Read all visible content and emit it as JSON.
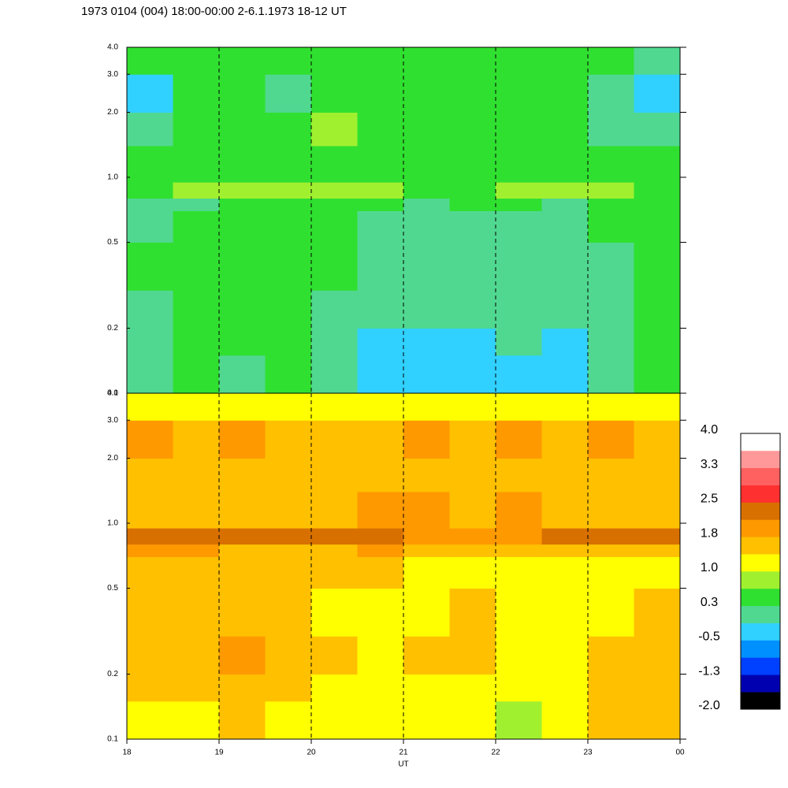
{
  "chart_data": {
    "type": "heatmap",
    "title": "1973 0104 (004) 18:00-00:00 2-6.1.1973  18-12 UT",
    "xlabel": "UT",
    "xlim": [
      18,
      24
    ],
    "xticks": [
      18,
      19,
      20,
      21,
      22,
      23,
      {
        "value": 24,
        "label": "00"
      }
    ],
    "ylim": [
      0.1,
      4
    ],
    "yticks": [
      0.1,
      0.2,
      0.5,
      {
        "value": 1,
        "label": "1.0"
      },
      {
        "value": 2,
        "label": "2.0"
      },
      {
        "value": 3,
        "label": "3.0"
      },
      {
        "value": 4,
        "label": "4.0"
      }
    ],
    "log_y": true,
    "grid": true,
    "time_bins": [
      18,
      18.5,
      19,
      19.5,
      20,
      20.5,
      21,
      21.5,
      22,
      22.5,
      23,
      23.5,
      24
    ],
    "freq_bins": [
      0.1,
      0.15,
      0.2,
      0.3,
      0.5,
      0.7,
      0.8,
      0.95,
      1.4,
      2,
      3,
      4
    ],
    "panels": [
      {
        "values": [
          [
            0.1,
            0.3,
            0.1,
            0.3,
            0.0,
            -0.3,
            -0.3,
            -0.3,
            -0.2,
            -0.3,
            0.0,
            0.3
          ],
          [
            0.1,
            0.3,
            0.3,
            0.3,
            0.1,
            -0.2,
            -0.2,
            -0.3,
            -0.1,
            -0.2,
            0.1,
            0.3
          ],
          [
            0.1,
            0.3,
            0.4,
            0.3,
            0.1,
            0.0,
            -0.1,
            -0.1,
            0.0,
            -0.1,
            0.1,
            0.3
          ],
          [
            0.3,
            0.3,
            0.4,
            0.3,
            0.3,
            0.1,
            0.0,
            0.1,
            0.1,
            0.0,
            0.1,
            0.3
          ],
          [
            0.0,
            0.3,
            0.3,
            0.3,
            0.3,
            0.1,
            0.1,
            0.1,
            0.1,
            0.0,
            0.3,
            0.3
          ],
          [
            0.0,
            0.1,
            0.3,
            0.3,
            0.3,
            0.3,
            0.1,
            0.3,
            0.3,
            0.1,
            0.3,
            0.3
          ],
          [
            0.5,
            0.7,
            0.7,
            0.7,
            0.7,
            0.7,
            0.5,
            0.5,
            0.7,
            0.7,
            0.7,
            0.5
          ],
          [
            0.3,
            0.3,
            0.4,
            0.5,
            0.4,
            0.3,
            0.3,
            0.3,
            0.4,
            0.4,
            0.3,
            0.3
          ],
          [
            0.0,
            0.3,
            0.5,
            0.4,
            0.7,
            0.4,
            0.3,
            0.4,
            0.3,
            0.5,
            0.1,
            0.0
          ],
          [
            -0.2,
            0.3,
            0.3,
            0.0,
            0.4,
            0.3,
            0.3,
            0.3,
            0.3,
            0.3,
            0.0,
            -0.2
          ],
          [
            0.3,
            0.3,
            0.3,
            0.4,
            0.5,
            0.4,
            0.4,
            0.3,
            0.3,
            0.4,
            0.3,
            0.1
          ]
        ]
      },
      {
        "values": [
          [
            1.2,
            1.2,
            1.6,
            1.2,
            1.2,
            1.1,
            1.2,
            1.2,
            0.9,
            1.0,
            1.4,
            1.7
          ],
          [
            1.4,
            1.5,
            1.7,
            1.4,
            1.3,
            1.2,
            1.3,
            1.3,
            1.0,
            1.2,
            1.5,
            1.7
          ],
          [
            1.5,
            1.6,
            1.8,
            1.5,
            1.4,
            1.3,
            1.4,
            1.4,
            1.2,
            1.3,
            1.5,
            1.6
          ],
          [
            1.5,
            1.5,
            1.7,
            1.4,
            1.3,
            1.3,
            1.3,
            1.4,
            1.2,
            1.2,
            1.3,
            1.5
          ],
          [
            1.6,
            1.5,
            1.6,
            1.5,
            1.4,
            1.5,
            1.2,
            1.1,
            1.2,
            1.2,
            1.2,
            1.3
          ],
          [
            1.8,
            1.8,
            1.7,
            1.7,
            1.7,
            1.8,
            1.5,
            1.5,
            1.6,
            1.6,
            1.6,
            1.6
          ],
          [
            2.3,
            2.3,
            2.3,
            2.2,
            2.2,
            2.2,
            2.0,
            2.0,
            2.0,
            2.2,
            2.3,
            2.3
          ],
          [
            1.7,
            1.7,
            1.6,
            1.6,
            1.6,
            1.8,
            1.9,
            1.6,
            1.8,
            1.7,
            1.6,
            1.6
          ],
          [
            1.7,
            1.6,
            1.6,
            1.6,
            1.6,
            1.7,
            1.6,
            1.6,
            1.6,
            1.7,
            1.6,
            1.6
          ],
          [
            1.8,
            1.7,
            1.8,
            1.7,
            1.7,
            1.7,
            1.8,
            1.7,
            1.8,
            1.7,
            1.8,
            1.7
          ],
          [
            1.1,
            1.1,
            1.2,
            1.1,
            1.2,
            1.1,
            1.2,
            1.2,
            1.1,
            1.1,
            1.1,
            1.1
          ]
        ]
      }
    ],
    "colorbar": {
      "lim": [
        -2,
        4
      ],
      "ticks": [
        {
          "value": 4,
          "label": "4.0"
        },
        {
          "value": 3.25,
          "label": "3.3"
        },
        2.5,
        {
          "value": 1.75,
          "label": "1.8"
        },
        {
          "value": 1,
          "label": "1.0"
        },
        {
          "value": 0.25,
          "label": "0.3"
        },
        -0.5,
        {
          "value": -1.25,
          "label": "-1.3"
        },
        {
          "value": -2,
          "label": "-2.0"
        }
      ],
      "colors": [
        "#000000",
        "#0000b0",
        "#0040ff",
        "#0090ff",
        "#30d0ff",
        "#50d890",
        "#30e030",
        "#a0f030",
        "#ffff00",
        "#ffc000",
        "#ff9900",
        "#d87000",
        "#ff3030",
        "#ff6060",
        "#ff9898",
        "#ffffff"
      ]
    }
  }
}
